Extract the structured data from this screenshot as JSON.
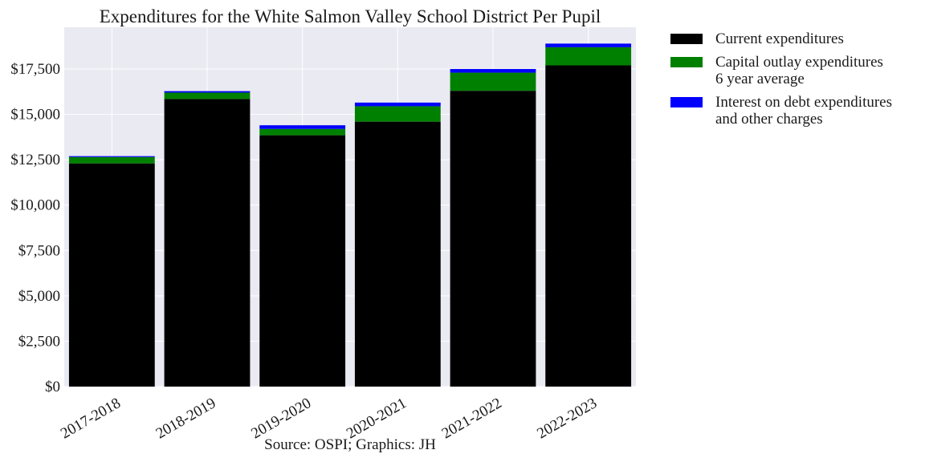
{
  "chart_data": {
    "type": "bar",
    "stacked": true,
    "title": "Expenditures for the White Salmon Valley School District Per Pupil",
    "source": "Source: OSPI; Graphics: JH",
    "categories": [
      "2017-2018",
      "2018-2019",
      "2019-2020",
      "2020-2021",
      "2021-2022",
      "2022-2023"
    ],
    "series": [
      {
        "name": "Current expenditures",
        "color": "#000000",
        "values": [
          12300,
          15850,
          13850,
          14600,
          16300,
          17700
        ]
      },
      {
        "name": "Capital outlay expenditures\n6 year average",
        "color": "#008000",
        "values": [
          350,
          350,
          350,
          850,
          1000,
          1000
        ]
      },
      {
        "name": "Interest on debt expenditures\nand other charges",
        "color": "#0000ff",
        "values": [
          50,
          80,
          200,
          200,
          200,
          200
        ]
      }
    ],
    "yticks": [
      0,
      2500,
      5000,
      7500,
      10000,
      12500,
      15000,
      17500
    ],
    "ytick_labels": [
      "$0",
      "$2,500",
      "$5,000",
      "$7,500",
      "$10,000",
      "$12,500",
      "$15,000",
      "$17,500"
    ],
    "ylim": [
      0,
      19800
    ],
    "xlabel": "",
    "ylabel": "",
    "grid": true,
    "legend_position": "outside-right-top",
    "plot_background": "#eaeaf2"
  }
}
